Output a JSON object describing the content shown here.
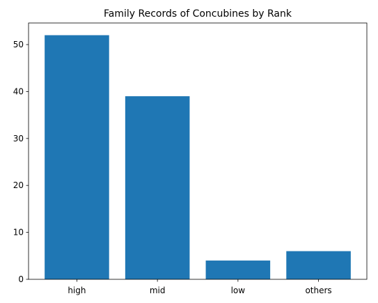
{
  "chart_data": {
    "type": "bar",
    "title": "Family Records of Concubines by Rank",
    "xlabel": "",
    "ylabel": "",
    "categories": [
      "high",
      "mid",
      "low",
      "others"
    ],
    "values": [
      52,
      39,
      4,
      6
    ],
    "ylim": [
      0,
      54.6
    ],
    "yticks": [
      0,
      10,
      20,
      30,
      40,
      50
    ],
    "grid": false,
    "legend": "none",
    "bar_color": "#1f77b4"
  }
}
